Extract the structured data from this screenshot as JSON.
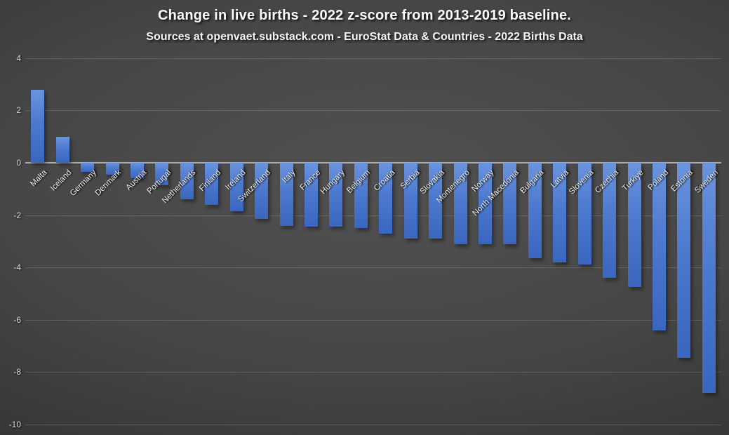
{
  "page": {
    "title": "Change in live births - 2022 z-score from 2013-2019 baseline.",
    "subtitle": "Sources at openvaet.substack.com - EuroStat Data & Countries - 2022 Births Data"
  },
  "colors": {
    "background_center": "#4f4f4f",
    "background_edge": "#1f1f1f",
    "bar_top": "#6b94de",
    "bar_bottom": "#3a66bf",
    "bar_base": "#4472c4",
    "gridline": "rgba(255,255,255,0.15)",
    "zero_line": "#aeaeae",
    "tick_text": "#d9d9d9",
    "category_text": "#f2f2f2",
    "title_text": "#ffffff"
  },
  "chart_data": {
    "type": "bar",
    "title": "Change in live births - 2022 z-score from 2013-2019 baseline.",
    "subtitle": "Sources at openvaet.substack.com - EuroStat Data & Countries - 2022 Births Data",
    "xlabel": "",
    "ylabel": "",
    "ylim": [
      -10,
      4
    ],
    "y_ticks": [
      4,
      2,
      0,
      -2,
      -4,
      -6,
      -8,
      -10
    ],
    "grid": true,
    "legend": false,
    "categories": [
      "Malta",
      "Iceland",
      "Germany",
      "Denmark",
      "Austria",
      "Portugal",
      "Netherlands",
      "Finland",
      "Ireland",
      "Switzerland",
      "Italy",
      "France",
      "Hungary",
      "Belgium",
      "Croatia",
      "Serbia",
      "Slovakia",
      "Montenegro",
      "Norway",
      "North Macedonia",
      "Bulgaria",
      "Latvia",
      "Slovenia",
      "Czechia",
      "Turkiye",
      "Poland",
      "Estonia",
      "Sweden"
    ],
    "values": [
      2.8,
      1.0,
      -0.35,
      -0.45,
      -0.6,
      -0.85,
      -1.4,
      -1.6,
      -1.85,
      -2.15,
      -2.4,
      -2.45,
      -2.45,
      -2.5,
      -2.7,
      -2.9,
      -2.9,
      -3.1,
      -3.1,
      -3.1,
      -3.65,
      -3.8,
      -3.9,
      -4.4,
      -4.75,
      -6.4,
      -7.45,
      -8.8
    ]
  }
}
